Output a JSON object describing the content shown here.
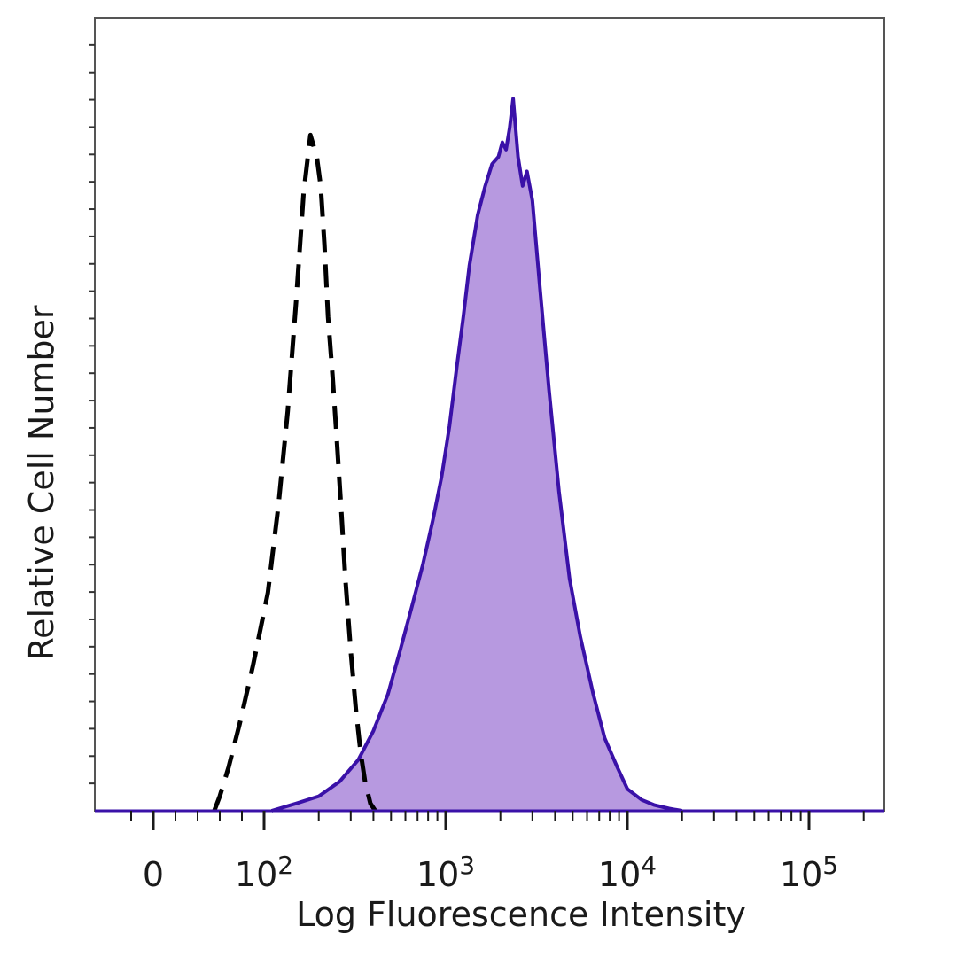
{
  "chart_data": {
    "type": "area",
    "title": "",
    "xlabel": "Log Fluorescence Intensity",
    "ylabel": "Relative Cell Number",
    "xscale": "biexponential (log above 10^2)",
    "xlim": [
      -30,
      200000
    ],
    "ylim": [
      0,
      1.0
    ],
    "grid": false,
    "legend": "none",
    "x_ticks": [
      {
        "value": 0,
        "base": "0",
        "exp": ""
      },
      {
        "value": 100,
        "base": "10",
        "exp": "2"
      },
      {
        "value": 1000,
        "base": "10",
        "exp": "3"
      },
      {
        "value": 10000,
        "base": "10",
        "exp": "4"
      },
      {
        "value": 100000,
        "base": "10",
        "exp": "5"
      }
    ],
    "series": [
      {
        "style": "dashed-outline",
        "color": "#000000",
        "x": [
          55,
          60,
          68,
          78,
          90,
          105,
          120,
          135,
          150,
          165,
          180,
          195,
          205,
          215,
          225,
          238,
          250,
          265,
          280,
          300,
          320,
          340,
          360,
          385,
          410
        ],
        "y": [
          0.0,
          0.02,
          0.06,
          0.12,
          0.2,
          0.3,
          0.42,
          0.55,
          0.7,
          0.85,
          0.93,
          0.9,
          0.86,
          0.78,
          0.68,
          0.6,
          0.52,
          0.42,
          0.32,
          0.22,
          0.14,
          0.08,
          0.04,
          0.01,
          0.0
        ]
      },
      {
        "style": "filled",
        "color": "#3a11a8",
        "fill": "#b799e0",
        "x": [
          110,
          150,
          200,
          260,
          330,
          400,
          480,
          560,
          650,
          750,
          850,
          950,
          1050,
          1150,
          1250,
          1350,
          1500,
          1650,
          1800,
          1950,
          2050,
          2150,
          2250,
          2350,
          2500,
          2650,
          2800,
          3000,
          3300,
          3700,
          4200,
          4800,
          5500,
          6500,
          7500,
          8800,
          10000,
          12000,
          14000,
          17000,
          20000
        ],
        "y": [
          0.0,
          0.01,
          0.02,
          0.04,
          0.07,
          0.11,
          0.16,
          0.22,
          0.28,
          0.34,
          0.4,
          0.46,
          0.53,
          0.61,
          0.68,
          0.75,
          0.82,
          0.86,
          0.89,
          0.9,
          0.92,
          0.91,
          0.94,
          0.98,
          0.9,
          0.86,
          0.88,
          0.84,
          0.72,
          0.58,
          0.44,
          0.32,
          0.24,
          0.16,
          0.1,
          0.06,
          0.03,
          0.015,
          0.008,
          0.003,
          0.0
        ]
      }
    ]
  }
}
